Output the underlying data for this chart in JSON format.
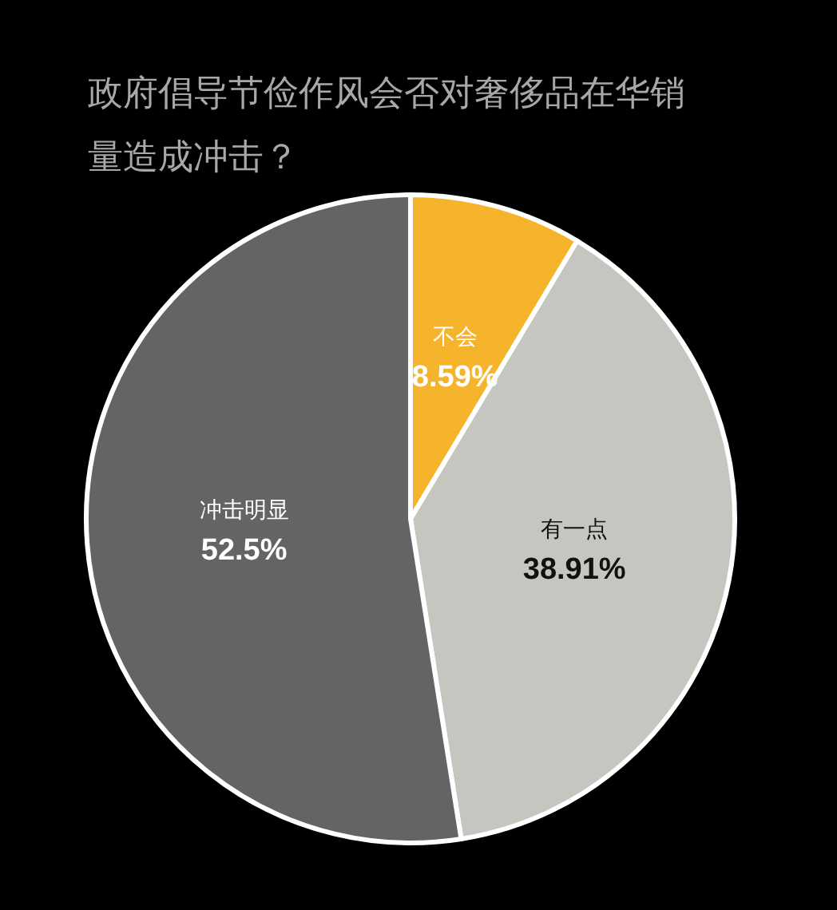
{
  "chart_data": {
    "type": "pie",
    "title": "政府倡导节俭作风会否对奢侈品在华销量造成冲击？",
    "categories": [
      "不会",
      "有一点",
      "冲击明显"
    ],
    "values": [
      8.59,
      38.91,
      52.5
    ],
    "colors": [
      "#f6b42c",
      "#c6c6c1",
      "#646464"
    ],
    "value_labels": [
      "8.59%",
      "38.91%",
      "52.5%"
    ],
    "legend": false
  }
}
